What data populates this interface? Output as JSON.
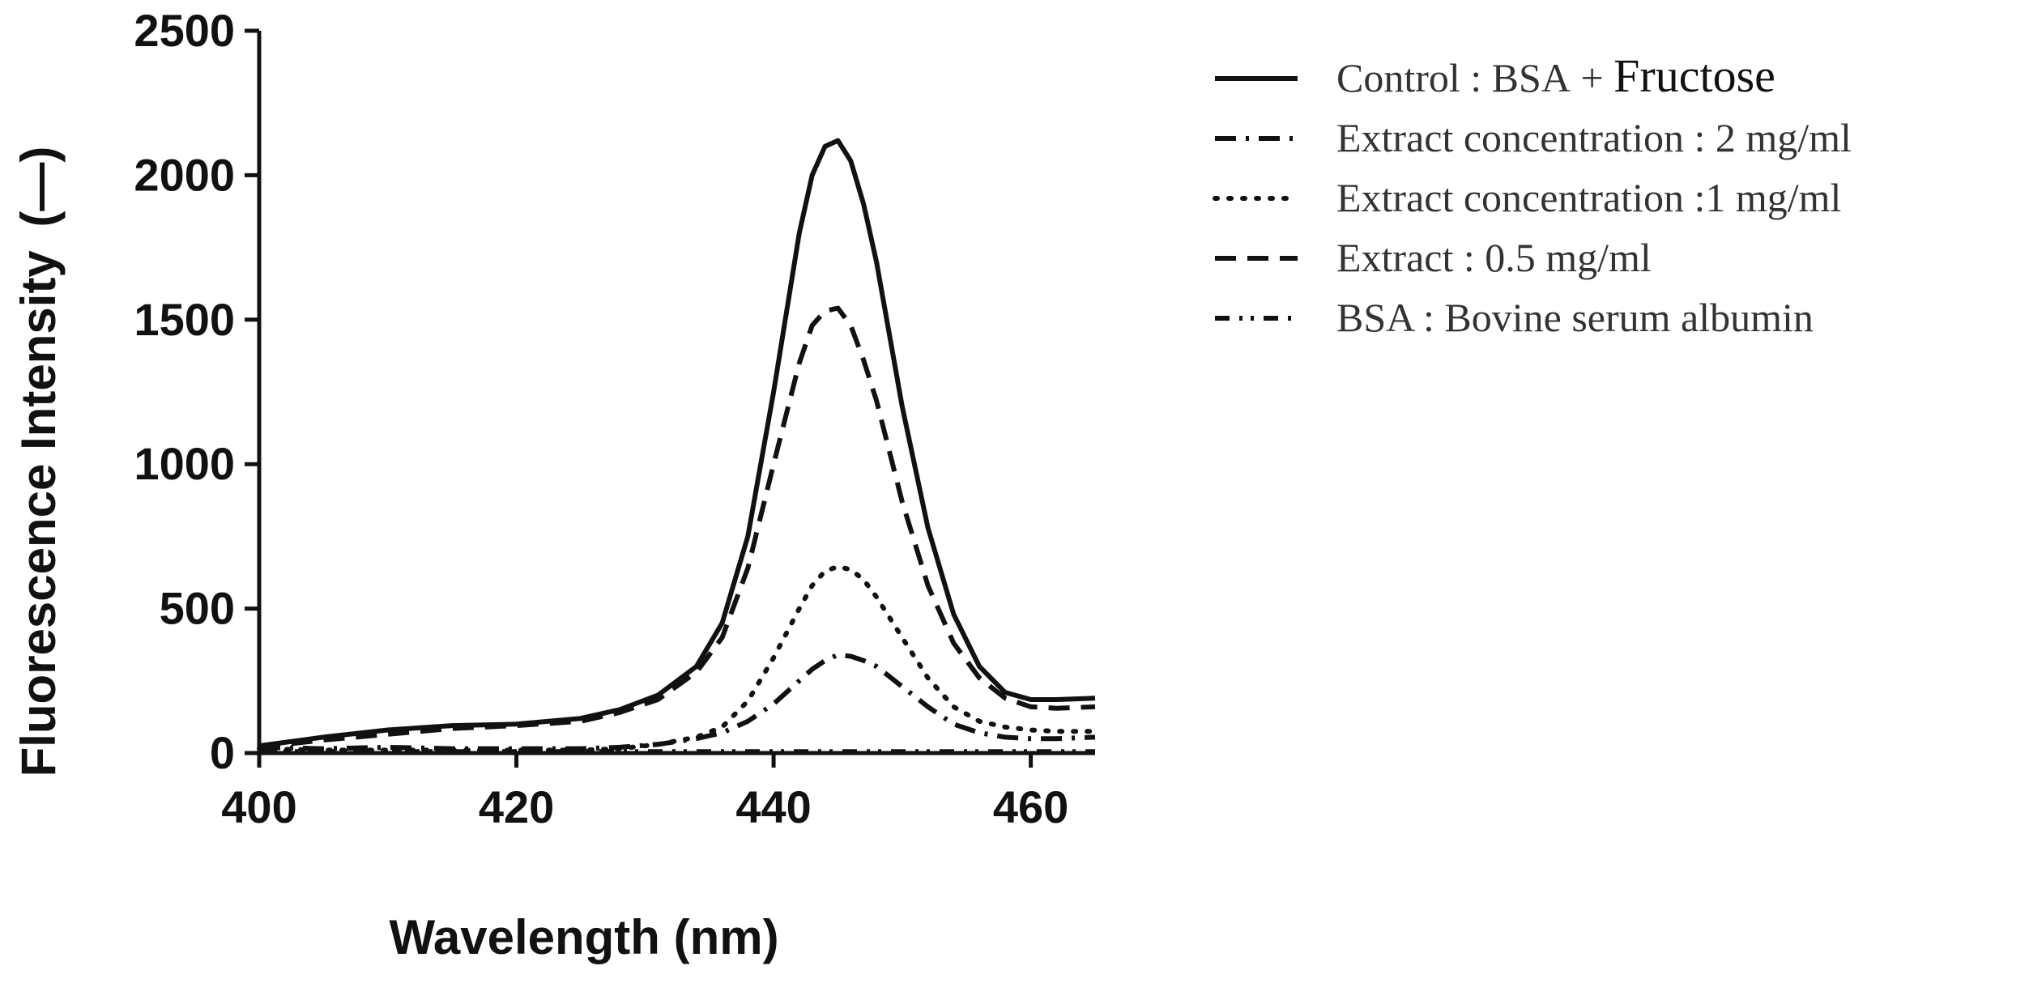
{
  "chart_data": {
    "type": "line",
    "title": "",
    "xlabel": "Wavelength (nm)",
    "ylabel_main": "Fluorescence Intensity",
    "ylabel_unit": "(—)",
    "xlim": [
      400,
      465
    ],
    "ylim": [
      0,
      2500
    ],
    "xticks": [
      400,
      420,
      440,
      460
    ],
    "yticks": [
      0,
      500,
      1000,
      1500,
      2000,
      2500
    ],
    "x": [
      400,
      405,
      410,
      415,
      420,
      425,
      428,
      431,
      434,
      436,
      438,
      440,
      442,
      443,
      444,
      445,
      446,
      447,
      448,
      450,
      452,
      454,
      456,
      458,
      460,
      462,
      465
    ],
    "series": [
      {
        "name": "Control : BSA + Fructose",
        "name_prefix": "Control : BSA + ",
        "name_suffix": "Fructose",
        "style": "solid",
        "values": [
          25,
          55,
          80,
          95,
          100,
          120,
          150,
          200,
          300,
          450,
          750,
          1250,
          1800,
          2000,
          2100,
          2120,
          2050,
          1900,
          1700,
          1200,
          780,
          480,
          300,
          210,
          185,
          185,
          190
        ]
      },
      {
        "name": "Extract concentration : 2 mg/ml",
        "style": "dashdot",
        "values": [
          20,
          15,
          20,
          15,
          15,
          15,
          20,
          30,
          50,
          70,
          110,
          170,
          250,
          290,
          320,
          340,
          335,
          320,
          300,
          230,
          160,
          100,
          70,
          55,
          50,
          50,
          55
        ]
      },
      {
        "name": "Extract concentration :1 mg/ml",
        "style": "dotted",
        "values": [
          15,
          10,
          10,
          10,
          10,
          10,
          15,
          30,
          55,
          90,
          180,
          330,
          500,
          580,
          630,
          645,
          635,
          600,
          540,
          400,
          260,
          160,
          110,
          90,
          80,
          75,
          75
        ]
      },
      {
        "name": "Extract : 0.5 mg/ml",
        "style": "dashed",
        "values": [
          20,
          45,
          65,
          85,
          95,
          110,
          140,
          185,
          280,
          400,
          640,
          1000,
          1350,
          1480,
          1530,
          1540,
          1480,
          1360,
          1220,
          870,
          580,
          380,
          260,
          190,
          160,
          155,
          160
        ]
      },
      {
        "name": "BSA : Bovine serum albumin",
        "style": "dashdotdot",
        "values": [
          5,
          5,
          5,
          5,
          5,
          5,
          5,
          5,
          5,
          5,
          5,
          5,
          5,
          5,
          5,
          5,
          5,
          5,
          5,
          5,
          5,
          5,
          5,
          5,
          5,
          5,
          5
        ]
      }
    ],
    "legend_position": "right"
  },
  "colors": {
    "axis": "#111111",
    "ylabel": "#c0600a",
    "line": "#111111",
    "legend_text": "#333333"
  }
}
